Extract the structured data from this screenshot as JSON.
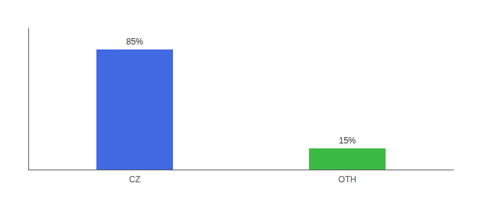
{
  "chart_data": {
    "type": "bar",
    "categories": [
      "CZ",
      "OTH"
    ],
    "values": [
      85,
      15
    ],
    "value_labels": [
      "85%",
      "15%"
    ],
    "colors": [
      "#4169e1",
      "#3cb943"
    ],
    "ylim": [
      0,
      100
    ],
    "grid": false,
    "data_labels": true,
    "tick_labels": "x"
  }
}
